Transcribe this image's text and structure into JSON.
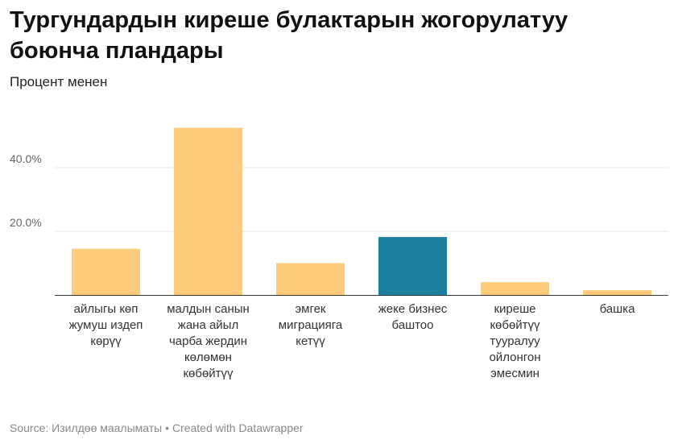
{
  "header": {
    "title": "Тургундардын киреше булактарын жогорулатуу боюнча пландары",
    "subtitle": "Процент менен"
  },
  "footer": {
    "source": "Source: Изилдөө маалыматы",
    "separator": " • ",
    "credit": "Created with Datawrapper"
  },
  "chart_data": {
    "type": "bar",
    "title": "Тургундардын киреше булактарын жогорулатуу боюнча пландары",
    "subtitle": "Процент менен",
    "categories": [
      "айлыгы көп жумуш издеп көрүү",
      "малдын санын жана айыл чарба жердин көлөмөн көбөйтүү",
      "эмгек миграцияга кетүү",
      "жеке бизнес баштоо",
      "киреше көбөйтүү тууралуу ойлонгон эмесмин",
      "башка"
    ],
    "values": [
      14.5,
      52.5,
      10.0,
      18.2,
      4.0,
      1.5
    ],
    "highlight_index": 3,
    "colors": {
      "default": "#fdcb7a",
      "highlight": "#1b7fa0",
      "grid": "#e6e6e6",
      "axis": "#333333"
    },
    "yticks": [
      {
        "value": 20,
        "label": "20.0%"
      },
      {
        "value": 40,
        "label": "40.0%"
      }
    ],
    "ylim": [
      0,
      55
    ],
    "grid": true,
    "legend": "none"
  }
}
